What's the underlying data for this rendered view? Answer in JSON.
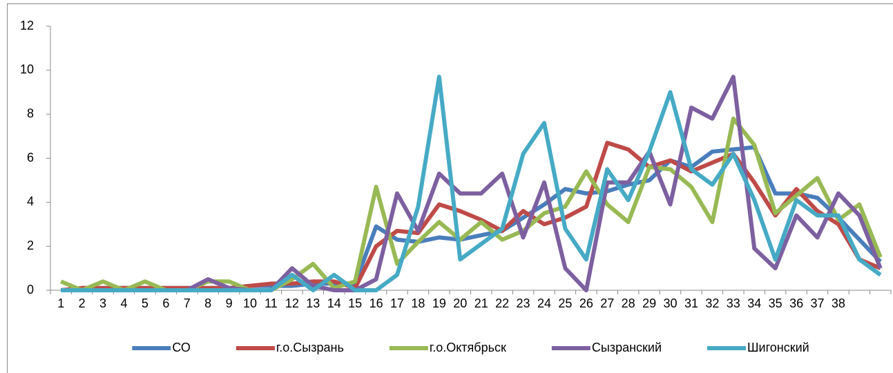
{
  "chart_data": {
    "type": "line",
    "categories": [
      "1",
      "2",
      "3",
      "4",
      "5",
      "6",
      "7",
      "8",
      "9",
      "10",
      "11",
      "12",
      "13",
      "14",
      "15",
      "16",
      "17",
      "18",
      "19",
      "20",
      "21",
      "22",
      "23",
      "24",
      "25",
      "26",
      "27",
      "28",
      "29",
      "30",
      "31",
      "32",
      "33",
      "34",
      "35",
      "36",
      "37",
      "38",
      null,
      null
    ],
    "series": [
      {
        "name": "СО",
        "color": "#4a7ebb",
        "values": [
          0,
          0.1,
          0.1,
          0.1,
          0.1,
          0.1,
          0.1,
          0.1,
          0.1,
          0.2,
          0.2,
          0.2,
          0.3,
          0.3,
          0.3,
          2.9,
          2.3,
          2.2,
          2.4,
          2.3,
          2.5,
          2.7,
          3.3,
          3.9,
          4.6,
          4.4,
          4.5,
          4.8,
          5.0,
          5.9,
          5.6,
          6.3,
          6.4,
          6.5,
          4.4,
          4.4,
          4.2,
          3.3,
          2.3,
          1.3
        ]
      },
      {
        "name": "г.о.Сызрань",
        "color": "#be4b48",
        "values": [
          0,
          0.1,
          0.1,
          0.1,
          0.1,
          0.1,
          0.1,
          0.1,
          0.1,
          0.2,
          0.3,
          0.3,
          0.4,
          0.4,
          0.1,
          2.0,
          2.7,
          2.6,
          3.9,
          3.6,
          3.2,
          2.7,
          3.6,
          3.0,
          3.3,
          3.8,
          6.7,
          6.4,
          5.6,
          5.9,
          5.4,
          5.8,
          6.2,
          4.9,
          3.4,
          4.6,
          3.6,
          3.0,
          1.4,
          1.0
        ]
      },
      {
        "name": "г.о.Октябрьск",
        "color": "#98b954",
        "values": [
          0.4,
          0,
          0.4,
          0,
          0.4,
          0,
          0,
          0.4,
          0.4,
          0,
          0,
          0.5,
          1.2,
          0.1,
          0.4,
          4.7,
          1.2,
          2.2,
          3.1,
          2.3,
          3.1,
          2.3,
          2.7,
          3.5,
          3.8,
          5.4,
          3.9,
          3.1,
          5.6,
          5.5,
          4.7,
          3.1,
          7.8,
          6.6,
          3.5,
          4.3,
          5.1,
          3.2,
          3.9,
          1.5
        ]
      },
      {
        "name": "Сызранский",
        "color": "#7d60a0",
        "values": [
          0,
          0,
          0,
          0,
          0,
          0,
          0,
          0.5,
          0.1,
          0,
          0,
          1.0,
          0.2,
          0,
          0,
          0.5,
          4.4,
          2.7,
          5.3,
          4.4,
          4.4,
          5.3,
          2.4,
          4.9,
          1.0,
          0,
          4.9,
          4.9,
          6.3,
          3.9,
          8.3,
          7.8,
          9.7,
          1.9,
          1.0,
          3.4,
          2.4,
          4.4,
          3.4,
          1.0
        ]
      },
      {
        "name": "Шигонский",
        "color": "#46aac5",
        "values": [
          0,
          0,
          0,
          0,
          0,
          0,
          0,
          0,
          0,
          0,
          0,
          0.7,
          0,
          0.7,
          0,
          0,
          0.7,
          3.8,
          9.7,
          1.4,
          2.1,
          2.8,
          6.2,
          7.6,
          2.8,
          1.4,
          5.5,
          4.1,
          6.3,
          9.0,
          5.5,
          4.8,
          6.2,
          4.1,
          1.4,
          4.1,
          3.4,
          3.4,
          1.4,
          0.7
        ]
      }
    ],
    "ylim": [
      0,
      12
    ],
    "yticks": [
      0,
      2,
      4,
      6,
      8,
      10,
      12
    ],
    "grid": false,
    "legend": "bottom"
  }
}
